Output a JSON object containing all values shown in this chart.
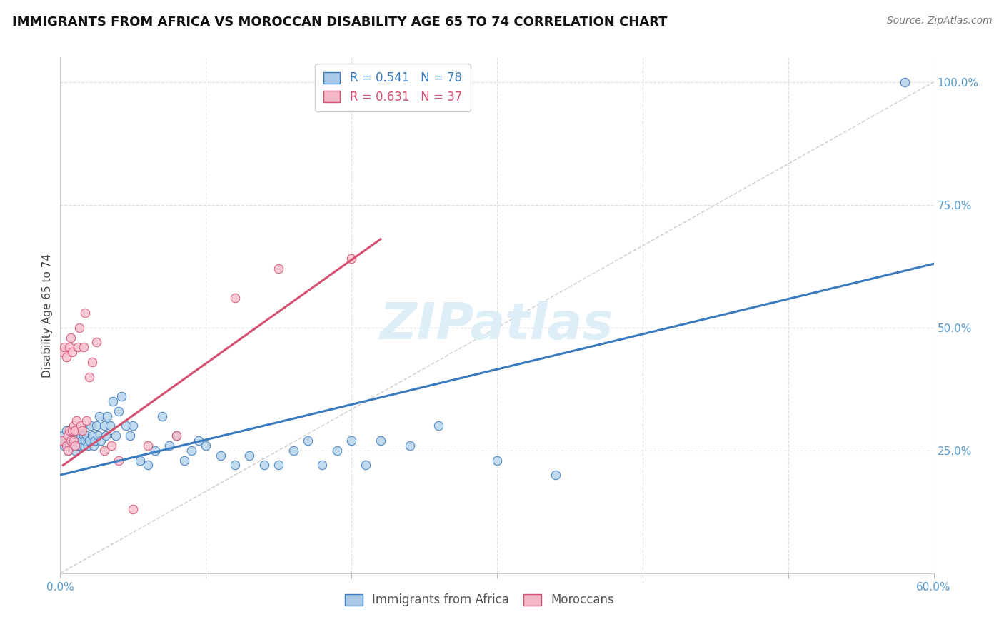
{
  "title": "IMMIGRANTS FROM AFRICA VS MOROCCAN DISABILITY AGE 65 TO 74 CORRELATION CHART",
  "source": "Source: ZipAtlas.com",
  "ylabel": "Disability Age 65 to 74",
  "xlim": [
    0.0,
    0.6
  ],
  "ylim": [
    0.0,
    1.05
  ],
  "xticks": [
    0.0,
    0.1,
    0.2,
    0.3,
    0.4,
    0.5,
    0.6
  ],
  "xticklabels": [
    "0.0%",
    "",
    "",
    "",
    "",
    "",
    "60.0%"
  ],
  "yticks": [
    0.0,
    0.25,
    0.5,
    0.75,
    1.0
  ],
  "yticklabels": [
    "",
    "25.0%",
    "50.0%",
    "75.0%",
    "100.0%"
  ],
  "legend1_text": "R = 0.541   N = 78",
  "legend2_text": "R = 0.631   N = 37",
  "legend_color1": "#aac9e8",
  "legend_color2": "#f4b8c8",
  "watermark": "ZIPatlas",
  "blue_scatter_x": [
    0.001,
    0.002,
    0.003,
    0.004,
    0.005,
    0.005,
    0.006,
    0.006,
    0.007,
    0.007,
    0.008,
    0.008,
    0.009,
    0.009,
    0.01,
    0.01,
    0.011,
    0.011,
    0.012,
    0.012,
    0.013,
    0.013,
    0.014,
    0.014,
    0.015,
    0.015,
    0.016,
    0.016,
    0.017,
    0.018,
    0.019,
    0.02,
    0.021,
    0.022,
    0.023,
    0.024,
    0.025,
    0.026,
    0.027,
    0.028,
    0.03,
    0.031,
    0.032,
    0.034,
    0.036,
    0.038,
    0.04,
    0.042,
    0.045,
    0.048,
    0.05,
    0.055,
    0.06,
    0.065,
    0.07,
    0.075,
    0.08,
    0.085,
    0.09,
    0.095,
    0.1,
    0.11,
    0.12,
    0.13,
    0.14,
    0.15,
    0.16,
    0.17,
    0.18,
    0.19,
    0.2,
    0.21,
    0.22,
    0.24,
    0.26,
    0.3,
    0.34,
    0.58
  ],
  "blue_scatter_y": [
    0.27,
    0.28,
    0.26,
    0.29,
    0.25,
    0.27,
    0.28,
    0.26,
    0.29,
    0.27,
    0.28,
    0.26,
    0.27,
    0.29,
    0.28,
    0.25,
    0.27,
    0.29,
    0.28,
    0.26,
    0.27,
    0.29,
    0.28,
    0.26,
    0.27,
    0.3,
    0.28,
    0.26,
    0.27,
    0.28,
    0.26,
    0.27,
    0.3,
    0.28,
    0.26,
    0.27,
    0.3,
    0.28,
    0.32,
    0.27,
    0.3,
    0.28,
    0.32,
    0.3,
    0.35,
    0.28,
    0.33,
    0.36,
    0.3,
    0.28,
    0.3,
    0.23,
    0.22,
    0.25,
    0.32,
    0.26,
    0.28,
    0.23,
    0.25,
    0.27,
    0.26,
    0.24,
    0.22,
    0.24,
    0.22,
    0.22,
    0.25,
    0.27,
    0.22,
    0.25,
    0.27,
    0.22,
    0.27,
    0.26,
    0.3,
    0.23,
    0.2,
    1.0
  ],
  "pink_scatter_x": [
    0.001,
    0.002,
    0.003,
    0.004,
    0.004,
    0.005,
    0.005,
    0.006,
    0.006,
    0.007,
    0.007,
    0.008,
    0.008,
    0.009,
    0.009,
    0.01,
    0.01,
    0.011,
    0.012,
    0.013,
    0.014,
    0.015,
    0.016,
    0.017,
    0.018,
    0.02,
    0.022,
    0.025,
    0.03,
    0.035,
    0.04,
    0.05,
    0.06,
    0.08,
    0.12,
    0.15,
    0.2
  ],
  "pink_scatter_y": [
    0.27,
    0.45,
    0.46,
    0.26,
    0.44,
    0.28,
    0.25,
    0.46,
    0.29,
    0.48,
    0.27,
    0.29,
    0.45,
    0.27,
    0.3,
    0.29,
    0.26,
    0.31,
    0.46,
    0.5,
    0.3,
    0.29,
    0.46,
    0.53,
    0.31,
    0.4,
    0.43,
    0.47,
    0.25,
    0.26,
    0.23,
    0.13,
    0.26,
    0.28,
    0.56,
    0.62,
    0.64
  ],
  "blue_line_x": [
    0.0,
    0.6
  ],
  "blue_line_y": [
    0.2,
    0.63
  ],
  "pink_line_x": [
    0.002,
    0.22
  ],
  "pink_line_y": [
    0.22,
    0.68
  ],
  "diag_line_x": [
    0.0,
    0.6
  ],
  "diag_line_y": [
    0.0,
    1.0
  ],
  "scatter_color_blue": "#b8d4ec",
  "scatter_color_pink": "#f9c0cf",
  "line_color_blue": "#3a7bbf",
  "line_color_pink": "#d45070",
  "diag_color": "#cccccc",
  "title_fontsize": 13,
  "label_fontsize": 11,
  "tick_fontsize": 11,
  "source_fontsize": 10,
  "watermark_fontsize": 52,
  "watermark_color": "#ddeef8",
  "background_color": "#ffffff",
  "tick_color": "#5599cc"
}
